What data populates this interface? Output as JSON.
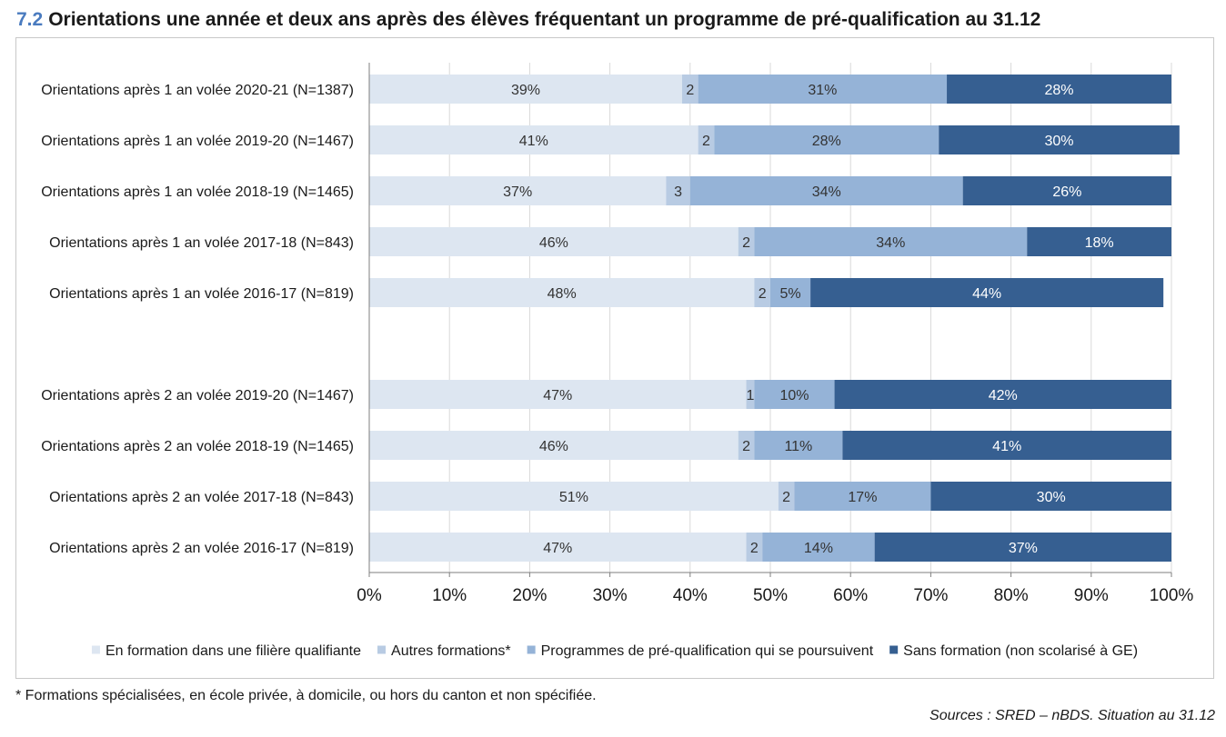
{
  "header": {
    "number": "7.2",
    "title": "Orientations une année et deux ans après des élèves fréquentant un programme de pré-qualification au 31.12"
  },
  "footer": {
    "footnote": "* Formations spécialisées, en école privée, à domicile, ou hors du canton et non spécifiée.",
    "source": "Sources : SRED – nBDS. Situation au 31.12"
  },
  "colors": {
    "filiere": "#dde6f1",
    "autres": "#b8cbe3",
    "preq": "#95b3d7",
    "sans": "#365f91",
    "grid": "#d9d9d9"
  },
  "chart_data": {
    "type": "bar",
    "orientation": "horizontal",
    "stacked": "percent",
    "xlim": [
      0,
      100
    ],
    "x_ticks": [
      "0%",
      "10%",
      "20%",
      "30%",
      "40%",
      "50%",
      "60%",
      "70%",
      "80%",
      "90%",
      "100%"
    ],
    "grid": true,
    "legend_position": "bottom",
    "categories": [
      "Orientations après 1 an volée 2020-21 (N=1387)",
      "Orientations après 1 an volée 2019-20 (N=1467)",
      "Orientations après 1 an volée 2018-19 (N=1465)",
      "Orientations après 1 an volée 2017-18 (N=843)",
      "Orientations après 1 an volée 2016-17 (N=819)",
      "",
      "Orientations après 2 an volée 2019-20 (N=1467)",
      "Orientations après 2 an volée 2018-19 (N=1465)",
      "Orientations après 2 an volée 2017-18 (N=843)",
      "Orientations après 2 an volée 2016-17 (N=819)"
    ],
    "series": [
      {
        "name": "En formation dans une filière qualifiante",
        "color_key": "filiere",
        "label_color": "dark",
        "values": [
          39,
          41,
          37,
          46,
          48,
          null,
          47,
          46,
          51,
          47
        ],
        "labels": [
          "39%",
          "41%",
          "37%",
          "46%",
          "48%",
          "",
          "47%",
          "46%",
          "51%",
          "47%"
        ]
      },
      {
        "name": "Autres formations*",
        "color_key": "autres",
        "label_color": "dark",
        "values": [
          2,
          2,
          3,
          2,
          2,
          null,
          1,
          2,
          2,
          2
        ],
        "labels": [
          "2",
          "2",
          "3",
          "2",
          "2",
          "",
          "1",
          "2",
          "2",
          "2"
        ]
      },
      {
        "name": "Programmes de pré-qualification qui se poursuivent",
        "color_key": "preq",
        "label_color": "dark",
        "values": [
          31,
          28,
          34,
          34,
          5,
          null,
          10,
          11,
          17,
          14
        ],
        "labels": [
          "31%",
          "28%",
          "34%",
          "34%",
          "5%",
          "",
          "10%",
          "11%",
          "17%",
          "14%"
        ]
      },
      {
        "name": "Sans formation (non scolarisé à GE)",
        "color_key": "sans",
        "label_color": "light",
        "values": [
          28,
          30,
          26,
          18,
          44,
          null,
          42,
          41,
          30,
          37
        ],
        "labels": [
          "28%",
          "30%",
          "26%",
          "18%",
          "44%",
          "",
          "42%",
          "41%",
          "30%",
          "37%"
        ]
      }
    ]
  }
}
